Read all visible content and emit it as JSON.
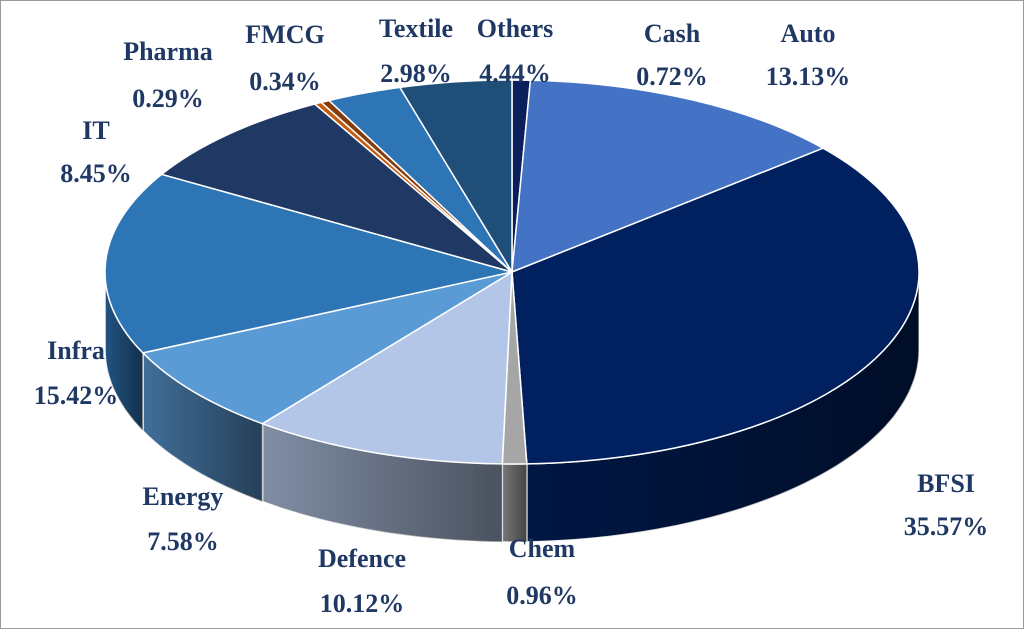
{
  "chart_data": {
    "type": "pie",
    "title": "",
    "style": "3d",
    "categories": [
      "Cash",
      "Auto",
      "BFSI",
      "Chem",
      "Defence",
      "Energy",
      "Infra",
      "IT",
      "Pharma",
      "FMCG",
      "Textile",
      "Others"
    ],
    "values": [
      0.72,
      13.13,
      35.57,
      0.96,
      10.12,
      7.58,
      15.42,
      8.45,
      0.29,
      0.34,
      2.98,
      4.44
    ],
    "labels": [
      "0.72%",
      "13.13%",
      "35.57%",
      "0.96%",
      "10.12%",
      "7.58%",
      "15.42%",
      "8.45%",
      "0.29%",
      "0.34%",
      "2.98%",
      "4.44%"
    ],
    "colors": [
      "#0a1f5c",
      "#4472c4",
      "#002060",
      "#a6a6a6",
      "#b4c6e7",
      "#5b9bd5",
      "#2e75b6",
      "#203864",
      "#c55a11",
      "#833c0b",
      "#2e75b6",
      "#1f4e79"
    ],
    "label_color": "#1f3864",
    "legend": "none"
  }
}
